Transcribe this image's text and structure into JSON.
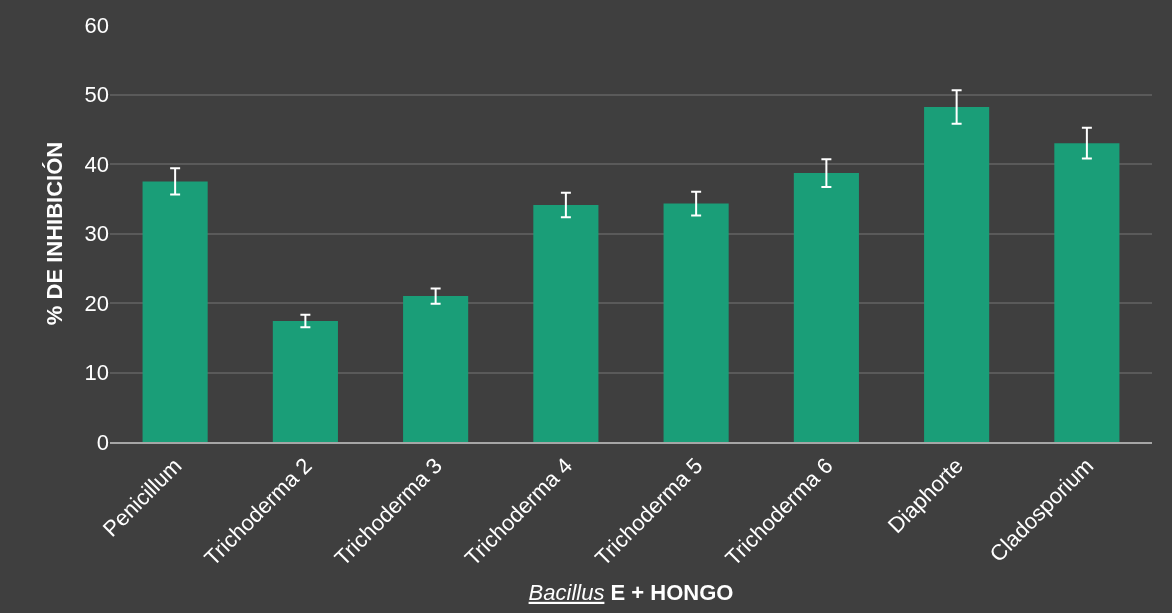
{
  "chart_data": {
    "type": "bar",
    "categories": [
      "Penicillum",
      "Trichoderma 2",
      "Trichoderma 3",
      "Trichoderma 4",
      "Trichoderma 5",
      "Trichoderma 6",
      "Diaphorte",
      "Cladosporium"
    ],
    "values": [
      37.5,
      17.4,
      21.0,
      34.1,
      34.3,
      38.7,
      48.2,
      43.0
    ],
    "errors": [
      1.9,
      0.9,
      1.1,
      1.75,
      1.7,
      2.0,
      2.4,
      2.2
    ],
    "color": "#1a9e78",
    "ylim": [
      0,
      60
    ],
    "yticks": [
      0,
      10,
      20,
      30,
      40,
      50,
      60
    ],
    "ylabel": "% DE INHIBICIÓN",
    "xlabel": "Bacillus E + HONGO",
    "grid": "y",
    "legend": false
  }
}
